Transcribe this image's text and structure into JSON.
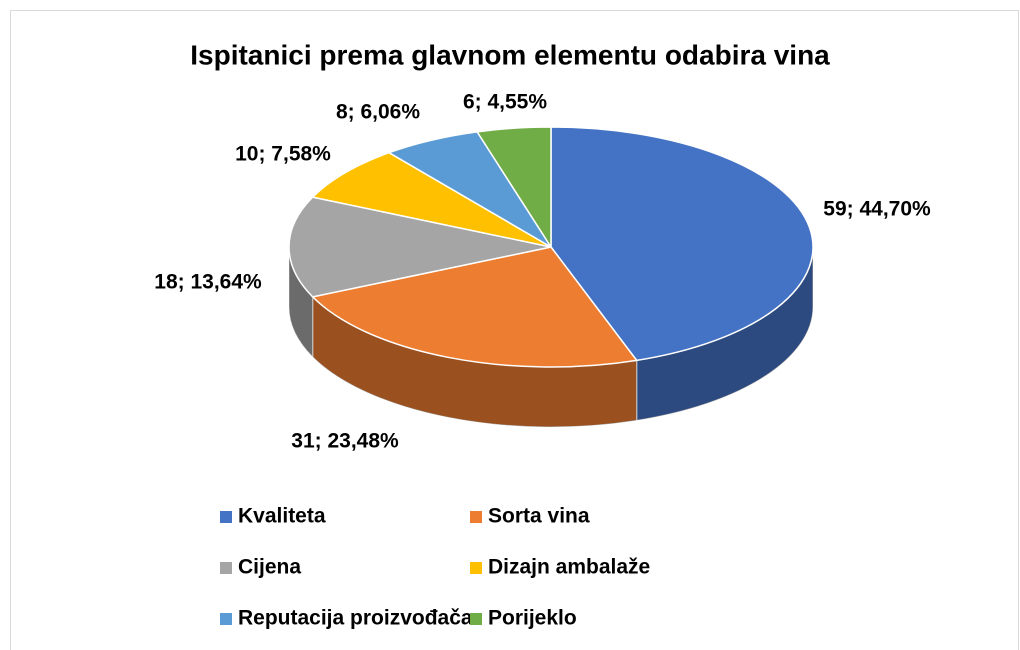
{
  "chart_data": {
    "type": "pie",
    "title": "Ispitanici prema glavnom elementu odabira vina",
    "categories": [
      "Kvaliteta",
      "Sorta vina",
      "Cijena",
      "Dizajn ambalaže",
      "Reputacija proizvođača",
      "Porijeklo"
    ],
    "values": [
      59,
      31,
      18,
      10,
      8,
      6
    ],
    "value_labels": [
      "59; 44,70%",
      "31; 23,48%",
      "18; 13,64%",
      "10; 7,58%",
      "8; 6,06%",
      "6; 4,55%"
    ],
    "colors": [
      "#4472c4",
      "#ed7d31",
      "#a5a5a5",
      "#ffc000",
      "#5b9bd5",
      "#70ad47"
    ],
    "legend": "bottom"
  }
}
